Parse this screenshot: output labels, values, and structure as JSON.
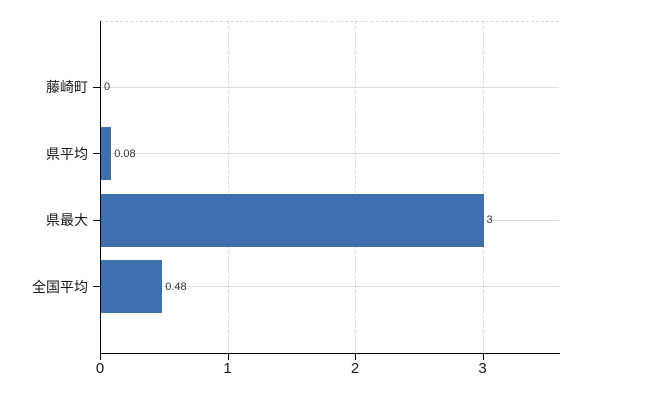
{
  "chart_data": {
    "type": "bar",
    "orientation": "horizontal",
    "title": "",
    "xlabel": "",
    "ylabel": "",
    "categories": [
      "藤崎町",
      "県平均",
      "県最大",
      "全国平均"
    ],
    "values": [
      0,
      0.08,
      3,
      0.48
    ],
    "value_labels": [
      "0",
      "0.08",
      "3",
      "0.48"
    ],
    "x_ticks": [
      0,
      1,
      2,
      3
    ],
    "x_tick_labels": [
      "0",
      "1",
      "2",
      "3"
    ],
    "xlim": [
      0,
      3.6
    ],
    "grid": true,
    "legend": false,
    "gridline_style": {
      "horizontal": "solid",
      "vertical": "dashed",
      "top_border": "dashed"
    },
    "colors": {
      "bar": "#3e6fae",
      "axis": "#000000",
      "category_label": "#1a1a1a",
      "value_label": "#333333",
      "tick_label": "#1a1a1a",
      "h_gridline": "#dde2dd",
      "v_gridline": "#ddd7d7",
      "background": "#ffffff"
    }
  }
}
